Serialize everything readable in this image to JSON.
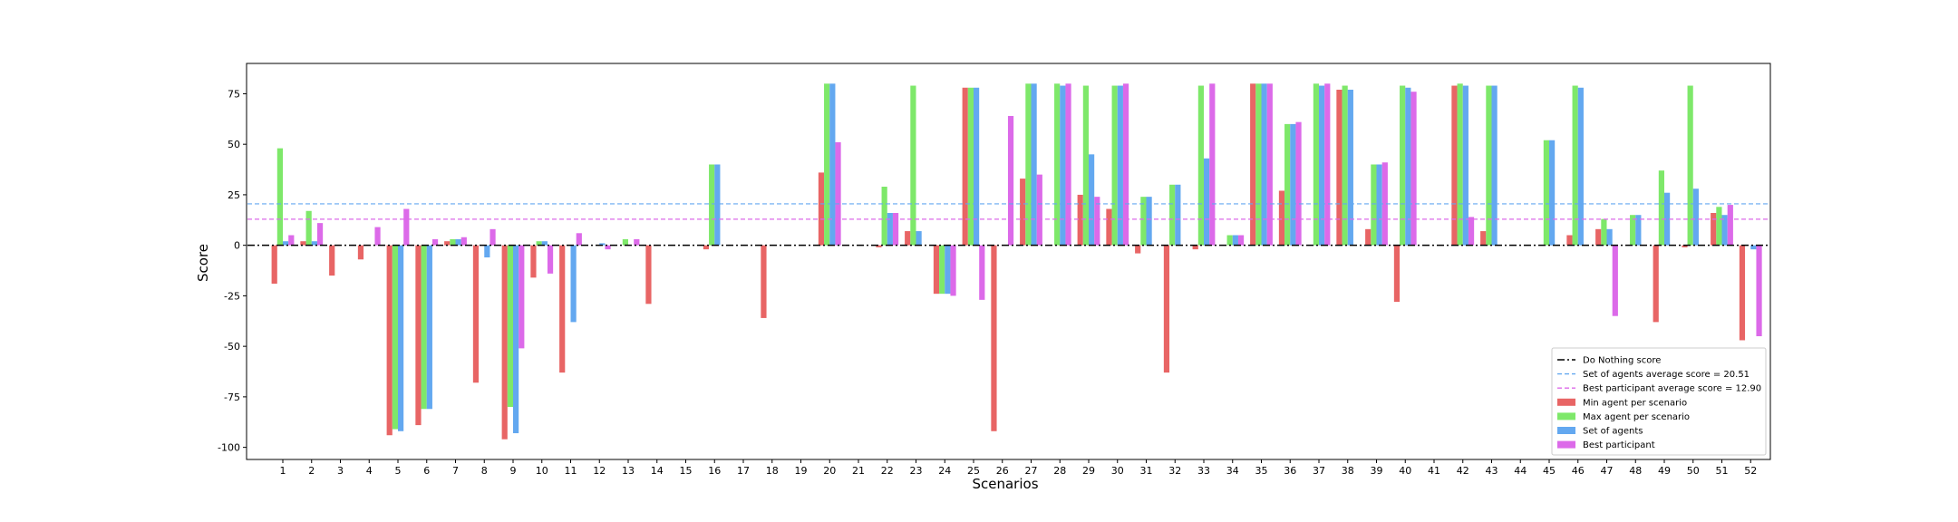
{
  "chart_data": {
    "type": "bar",
    "xlabel": "Scenarios",
    "ylabel": "Score",
    "ylim": [
      -106,
      90
    ],
    "yticks": [
      -100,
      -75,
      -50,
      -25,
      0,
      25,
      50,
      75
    ],
    "categories": [
      "1",
      "2",
      "3",
      "4",
      "5",
      "6",
      "7",
      "8",
      "9",
      "10",
      "11",
      "12",
      "13",
      "14",
      "15",
      "16",
      "17",
      "18",
      "19",
      "20",
      "21",
      "22",
      "23",
      "24",
      "25",
      "26",
      "27",
      "28",
      "29",
      "30",
      "31",
      "32",
      "33",
      "34",
      "35",
      "36",
      "37",
      "38",
      "39",
      "40",
      "41",
      "42",
      "43",
      "44",
      "45",
      "46",
      "47",
      "48",
      "49",
      "50",
      "51",
      "52"
    ],
    "series": [
      {
        "name": "Min agent per scenario",
        "color": "#e86565",
        "values": [
          -19,
          2,
          -15,
          -7,
          -94,
          -89,
          2,
          -68,
          -96,
          -16,
          -63,
          0,
          0,
          -29,
          0,
          -2,
          0,
          -36,
          0,
          36,
          0,
          -1,
          7,
          -24,
          78,
          -92,
          33,
          0,
          25,
          18,
          -4,
          -63,
          -2,
          0,
          80,
          27,
          0,
          77,
          8,
          -28,
          0,
          79,
          7,
          0,
          0,
          5,
          8,
          0,
          -38,
          -1,
          16,
          -47
        ]
      },
      {
        "name": "Max agent per scenario",
        "color": "#7ee86a",
        "values": [
          48,
          17,
          0,
          0,
          -91,
          -81,
          3,
          0,
          -80,
          2,
          0,
          0,
          3,
          0,
          0,
          40,
          0,
          0,
          0,
          80,
          0,
          29,
          79,
          -24,
          78,
          0,
          80,
          80,
          79,
          79,
          24,
          30,
          79,
          5,
          80,
          60,
          80,
          79,
          40,
          79,
          0,
          80,
          79,
          0,
          52,
          79,
          13,
          15,
          37,
          79,
          19,
          0
        ]
      },
      {
        "name": "Set of agents",
        "color": "#63a8f0",
        "values": [
          2,
          2,
          0,
          0,
          -92,
          -81,
          3,
          -6,
          -93,
          2,
          -38,
          1,
          0,
          0,
          0,
          40,
          0,
          0,
          0,
          80,
          0,
          16,
          7,
          -24,
          78,
          0,
          80,
          79,
          45,
          79,
          24,
          30,
          43,
          5,
          80,
          60,
          79,
          77,
          40,
          78,
          0,
          79,
          79,
          0,
          52,
          78,
          8,
          15,
          26,
          28,
          15,
          -2
        ]
      },
      {
        "name": "Best participant",
        "color": "#dc6ae9",
        "values": [
          5,
          11,
          0,
          9,
          18,
          3,
          4,
          8,
          -51,
          -14,
          6,
          -2,
          3,
          0,
          0,
          0,
          0,
          0,
          0,
          51,
          0,
          16,
          0,
          -25,
          -27,
          64,
          35,
          80,
          24,
          80,
          0,
          0,
          80,
          5,
          80,
          61,
          80,
          0,
          41,
          76,
          0,
          14,
          0,
          0,
          0,
          0,
          -35,
          0,
          0,
          0,
          20,
          -45
        ]
      }
    ],
    "reference_lines": [
      {
        "label": "Do Nothing score",
        "value": 0,
        "color": "#000000",
        "style": "dashdot"
      },
      {
        "label": "Set of agents average score = 20.51",
        "value": 20.51,
        "color": "#63a8f0",
        "style": "dashed"
      },
      {
        "label": "Best participant average score = 12.90",
        "value": 12.9,
        "color": "#dc6ae9",
        "style": "dashed"
      }
    ],
    "legend_position": "bottom-right",
    "grid": false
  }
}
